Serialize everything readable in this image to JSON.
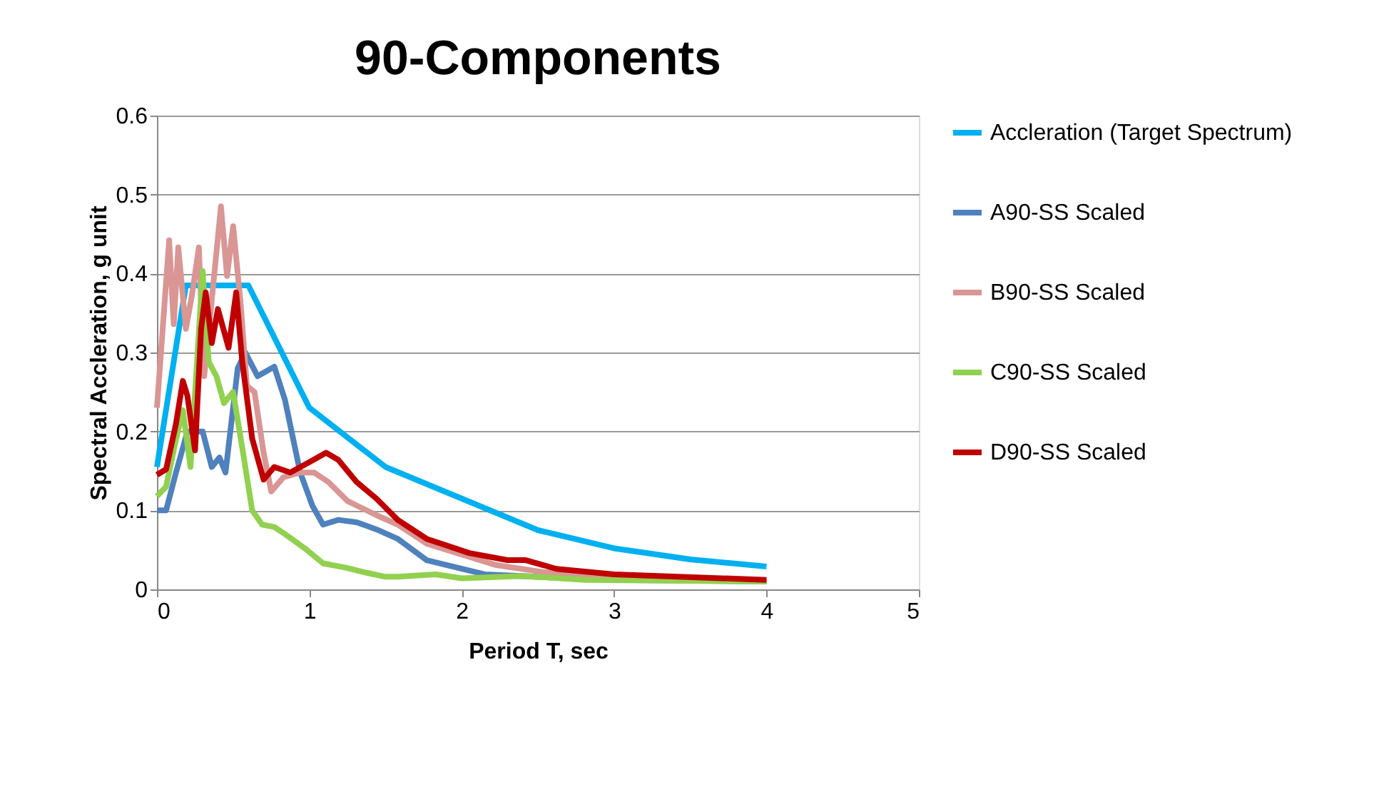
{
  "chart_data": {
    "type": "line",
    "title": "90-Components",
    "xlabel": "Period T, sec",
    "ylabel": "Spectral Accleration, g unit",
    "xlim": [
      0,
      5
    ],
    "xticks": [
      0,
      1,
      2,
      3,
      4,
      5
    ],
    "ylim": [
      0,
      0.6
    ],
    "yticks": [
      0,
      0.1,
      0.2,
      0.3,
      0.4,
      0.5,
      0.6
    ],
    "grid": "y",
    "legend": "right",
    "marker": "none",
    "line_style": "solid",
    "series": [
      {
        "name": "Accleration (Target Spectrum)",
        "color": "#00b0f0",
        "x": [
          0,
          0.19,
          0.6,
          1.0,
          1.5,
          2.0,
          2.5,
          3.0,
          3.5,
          4.0
        ],
        "values": [
          0.155,
          0.385,
          0.385,
          0.23,
          0.155,
          0.115,
          0.075,
          0.052,
          0.038,
          0.029
        ]
      },
      {
        "name": "A90-SS Scaled",
        "color": "#4f81bd",
        "x": [
          0,
          0.06,
          0.125,
          0.2,
          0.3,
          0.36,
          0.41,
          0.45,
          0.53,
          0.58,
          0.66,
          0.77,
          0.84,
          0.94,
          1.02,
          1.09,
          1.19,
          1.31,
          1.44,
          1.58,
          1.77,
          2.15,
          2.6,
          3.0,
          4.0
        ],
        "values": [
          0.1,
          0.1,
          0.148,
          0.2,
          0.2,
          0.155,
          0.167,
          0.148,
          0.28,
          0.3,
          0.27,
          0.282,
          0.24,
          0.148,
          0.106,
          0.082,
          0.088,
          0.085,
          0.076,
          0.064,
          0.037,
          0.019,
          0.015,
          0.012,
          0.01
        ]
      },
      {
        "name": "B90-SS Scaled",
        "color": "#d99694",
        "x": [
          0,
          0.08,
          0.11,
          0.14,
          0.19,
          0.23,
          0.275,
          0.31,
          0.36,
          0.42,
          0.46,
          0.5,
          0.55,
          0.59,
          0.64,
          0.7,
          0.75,
          0.83,
          0.94,
          1.03,
          1.125,
          1.25,
          1.44,
          1.58,
          1.77,
          2.22,
          2.53,
          3.0,
          4.0
        ],
        "values": [
          0.23,
          0.442,
          0.336,
          0.433,
          0.33,
          0.373,
          0.433,
          0.27,
          0.367,
          0.485,
          0.397,
          0.46,
          0.36,
          0.258,
          0.25,
          0.173,
          0.124,
          0.142,
          0.148,
          0.148,
          0.136,
          0.112,
          0.094,
          0.082,
          0.058,
          0.031,
          0.022,
          0.015,
          0.01
        ]
      },
      {
        "name": "C90-SS Scaled",
        "color": "#92d050",
        "x": [
          0,
          0.06,
          0.125,
          0.17,
          0.22,
          0.3,
          0.34,
          0.39,
          0.44,
          0.5,
          0.56,
          0.625,
          0.69,
          0.77,
          0.84,
          0.97,
          1.09,
          1.25,
          1.375,
          1.5,
          1.58,
          1.83,
          2.0,
          2.4,
          2.81,
          4.0
        ],
        "values": [
          0.118,
          0.13,
          0.19,
          0.227,
          0.155,
          0.403,
          0.288,
          0.27,
          0.236,
          0.25,
          0.179,
          0.1,
          0.082,
          0.079,
          0.07,
          0.052,
          0.033,
          0.027,
          0.021,
          0.016,
          0.016,
          0.019,
          0.014,
          0.017,
          0.012,
          0.01
        ]
      },
      {
        "name": "D90-SS Scaled",
        "color": "#c00000",
        "x": [
          0,
          0.06,
          0.125,
          0.17,
          0.2,
          0.25,
          0.29,
          0.32,
          0.36,
          0.4,
          0.47,
          0.52,
          0.56,
          0.625,
          0.7,
          0.77,
          0.875,
          1.0,
          1.11,
          1.19,
          1.31,
          1.44,
          1.58,
          1.77,
          2.05,
          2.3,
          2.42,
          2.62,
          3.0,
          4.0
        ],
        "values": [
          0.145,
          0.152,
          0.21,
          0.264,
          0.245,
          0.176,
          0.33,
          0.376,
          0.312,
          0.355,
          0.306,
          0.376,
          0.288,
          0.191,
          0.139,
          0.155,
          0.148,
          0.161,
          0.173,
          0.164,
          0.136,
          0.115,
          0.088,
          0.064,
          0.046,
          0.037,
          0.037,
          0.026,
          0.019,
          0.012
        ]
      }
    ]
  }
}
